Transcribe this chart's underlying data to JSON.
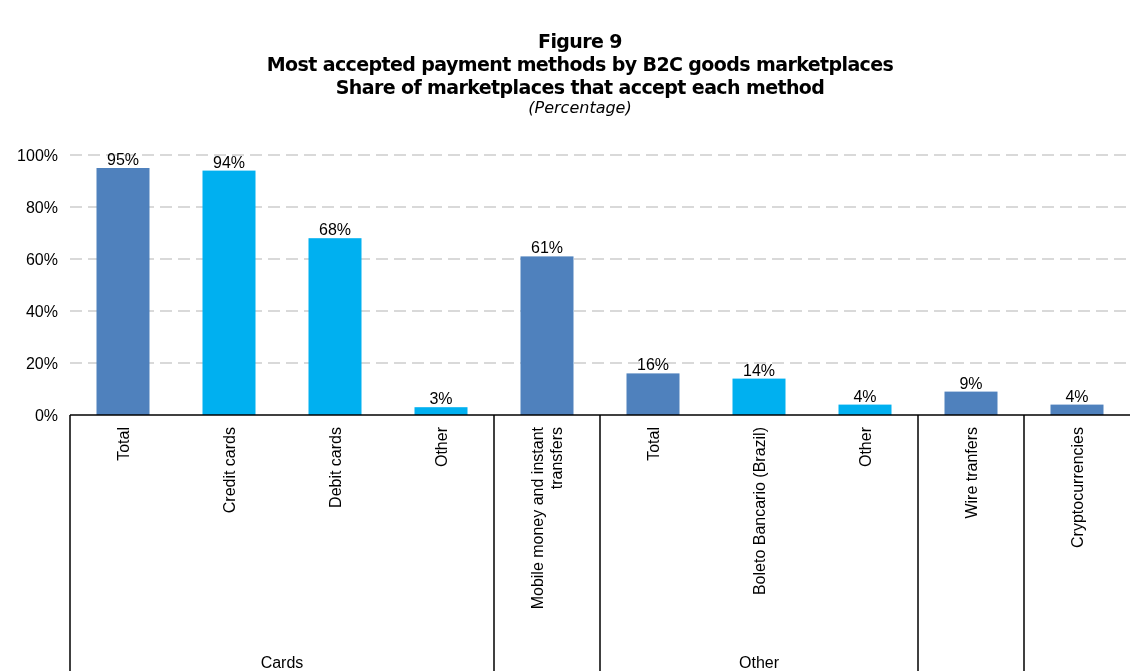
{
  "chart_data": {
    "type": "bar",
    "title": "Figure 9\nMost accepted payment methods by B2C goods marketplaces\nShare of marketplaces that accept each method",
    "subtitle": "(Percentage)",
    "categories": [
      "Total",
      "Credit cards",
      "Debit cards",
      "Other",
      "Mobile money and instant transfers",
      "Total",
      "Boleto Bancario (Brazil)",
      "Other",
      "Wire tranfers",
      "Cryptocurrencies"
    ],
    "values": [
      95,
      94,
      68,
      3,
      61,
      16,
      14,
      4,
      9,
      4
    ],
    "colors": [
      "#4f81bd",
      "#00b0f0",
      "#00b0f0",
      "#00b0f0",
      "#4f81bd",
      "#4f81bd",
      "#00b0f0",
      "#00b0f0",
      "#4f81bd",
      "#4f81bd"
    ],
    "value_labels": [
      "95%",
      "94%",
      "68%",
      "3%",
      "61%",
      "16%",
      "14%",
      "4%",
      "9%",
      "4%"
    ],
    "ylim": [
      0,
      100
    ],
    "yticks": [
      {
        "value": 0,
        "label": "0%"
      },
      {
        "value": 20,
        "label": "20%"
      },
      {
        "value": 40,
        "label": "40%"
      },
      {
        "value": 60,
        "label": "60%"
      },
      {
        "value": 80,
        "label": "80%"
      },
      {
        "value": 100,
        "label": "100%"
      }
    ],
    "grid": "y",
    "annotations": [
      "Cards",
      "Other"
    ]
  }
}
